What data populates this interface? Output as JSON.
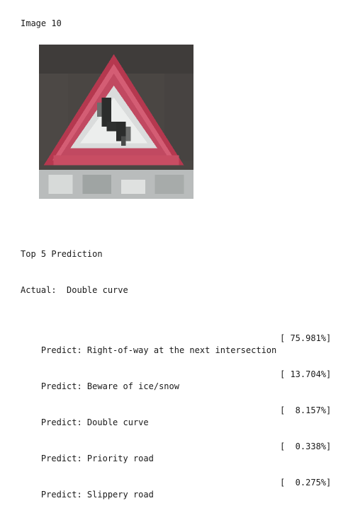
{
  "image_title": "Image 10",
  "image": {
    "subject": "triangular warning road sign with double curve symbol"
  },
  "results": {
    "heading": "Top 5 Prediction",
    "actual_line": "Actual:  Double curve",
    "predictions": [
      {
        "text": "Predict: Right-of-way at the next intersection",
        "pct": "[ 75.981%]"
      },
      {
        "text": "Predict: Beware of ice/snow",
        "pct": "[ 13.704%]"
      },
      {
        "text": "Predict: Double curve",
        "pct": "[  8.157%]"
      },
      {
        "text": "Predict: Priority road",
        "pct": "[  0.338%]"
      },
      {
        "text": "Predict: Slippery road",
        "pct": "[  0.275%]"
      }
    ]
  }
}
